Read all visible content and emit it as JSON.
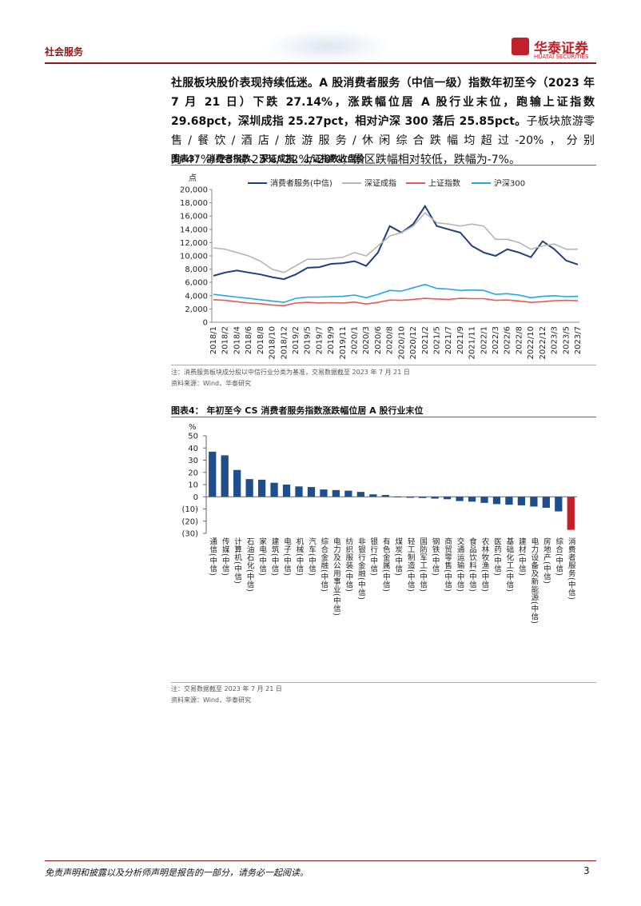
{
  "header": {
    "section": "社会服务",
    "logo": "华泰证券",
    "logo_en": "HUATAI SECURITIES"
  },
  "paragraph": {
    "bold": "社服板块股价表现持续低迷。A 股消费者服务（中信一级）指数年初至今（2023 年 7 月 21 日）下跌 27.14%，涨跌幅位居 A 股行业末位，跑输上证指数 29.68pct，深圳成指 25.27pct，相对沪深 300 落后 25.85pct。",
    "text": "子板块旅游零售/餐饮/酒店/旅游服务/休闲综合跌幅均超过-20%，分别为-47%/-23%/-23%/-22%/-20%，景区跌幅相对较低，跌幅为-7%。"
  },
  "figure3": {
    "title": "图表3：  消费者指数、深证成指、上证指数收盘价",
    "note": "注：消费服务板块成分股以中信行业分类为基准，交易数据截至 2023 年 7 月 21 日",
    "source": "资料来源：Wind，华泰研究"
  },
  "figure4": {
    "title": "图表4：  年初至今 CS 消费者服务指数涨跌幅位居 A 股行业末位",
    "note": "注：交易数据截至 2023 年 7 月 21 日",
    "source": "资料来源：Wind，华泰研究"
  },
  "footer": {
    "disclaimer": "免责声明和披露以及分析师声明是报告的一部分，请务必一起阅读。",
    "page": "3"
  },
  "chart_data": [
    {
      "type": "line",
      "y_label": "点",
      "categories": [
        "2018/1",
        "2018/2",
        "2018/4",
        "2018/6",
        "2018/8",
        "2018/10",
        "2018/12",
        "2019/2",
        "2019/5",
        "2019/7",
        "2019/9",
        "2019/11",
        "2020/1",
        "2020/3",
        "2020/6",
        "2020/8",
        "2020/10",
        "2020/12",
        "2021/2",
        "2021/5",
        "2021/7",
        "2021/9",
        "2021/11",
        "2022/1",
        "2022/3",
        "2022/6",
        "2022/8",
        "2022/10",
        "2022/12",
        "2023/3",
        "2023/5",
        "2023/7"
      ],
      "series": [
        {
          "name": "消费者服务(中信)",
          "color": "#1f3f7a",
          "values": [
            7000,
            7500,
            7800,
            7500,
            7200,
            6800,
            6500,
            7200,
            8200,
            8300,
            8800,
            8900,
            9200,
            8500,
            10500,
            14500,
            13500,
            14800,
            17500,
            14500,
            14000,
            13500,
            11500,
            10500,
            10000,
            11000,
            10500,
            9800,
            12200,
            11000,
            9300,
            8700
          ]
        },
        {
          "name": "深证成指",
          "color": "#b5b5b5",
          "values": [
            11200,
            11000,
            10500,
            10000,
            9200,
            8000,
            7500,
            8500,
            9500,
            9500,
            9600,
            9800,
            10500,
            10000,
            11500,
            13000,
            13500,
            14500,
            16500,
            15000,
            14800,
            14500,
            14800,
            14500,
            12500,
            12500,
            12000,
            11000,
            11500,
            11800,
            11000,
            11000
          ]
        },
        {
          "name": "上证指数",
          "color": "#e8585a",
          "values": [
            3400,
            3300,
            3100,
            2900,
            2800,
            2600,
            2500,
            2900,
            3000,
            2900,
            2950,
            2900,
            3050,
            2750,
            3000,
            3350,
            3300,
            3450,
            3600,
            3500,
            3450,
            3600,
            3550,
            3550,
            3300,
            3350,
            3200,
            3000,
            3100,
            3250,
            3300,
            3250
          ]
        },
        {
          "name": "沪深300",
          "color": "#21a6e8",
          "values": [
            4200,
            4000,
            3800,
            3600,
            3400,
            3200,
            3000,
            3600,
            3800,
            3800,
            3850,
            3900,
            4100,
            3700,
            4200,
            4800,
            4700,
            5200,
            5700,
            5100,
            5000,
            4800,
            4850,
            4800,
            4200,
            4300,
            4100,
            3700,
            3900,
            4000,
            3850,
            3900
          ]
        }
      ],
      "ylim": [
        0,
        20000
      ],
      "yticks": [
        0,
        {
          "value": 2000,
          "label": "2,000"
        },
        {
          "value": 4000,
          "label": "4,000"
        },
        {
          "value": 6000,
          "label": "6,000"
        },
        {
          "value": 8000,
          "label": "8,000"
        },
        {
          "value": 10000,
          "label": "10,000"
        },
        {
          "value": 12000,
          "label": "12,000"
        },
        {
          "value": 14000,
          "label": "14,000"
        },
        {
          "value": 16000,
          "label": "16,000"
        },
        {
          "value": 18000,
          "label": "18,000"
        },
        {
          "value": 20000,
          "label": "20,000"
        }
      ]
    },
    {
      "type": "bar",
      "y_label": "%",
      "categories": [
        "通信(中信)",
        "传媒(中信)",
        "计算机(中信)",
        "石油石化(中信)",
        "家电(中信)",
        "建筑(中信)",
        "电子(中信)",
        "机械(中信)",
        "汽车(中信)",
        "综合金融(中信)",
        "电力及公用事业(中信)",
        "纺织服装(中信)",
        "非银行金融(中信)",
        "银行(中信)",
        "有色金属(中信)",
        "煤炭(中信)",
        "轻工制造(中信)",
        "国防军工(中信)",
        "钢铁(中信)",
        "商贸零售(中信)",
        "交通运输(中信)",
        "食品饮料(中信)",
        "农林牧渔(中信)",
        "医药(中信)",
        "基础化工(中信)",
        "建材(中信)",
        "电力设备及新能源(中信)",
        "房地产(中信)",
        "综合(中信)",
        "消费者服务(中信)"
      ],
      "values": [
        37,
        34,
        22,
        14.5,
        14,
        11.5,
        10,
        8.5,
        8,
        6,
        5.5,
        5,
        4,
        2,
        1.5,
        -0.5,
        -0.8,
        -1,
        -1.5,
        -2,
        -3.5,
        -4,
        -5,
        -6,
        -6.5,
        -7,
        -8,
        -9,
        -12,
        -27.14
      ],
      "colors": [
        "#1f4e8c",
        "#1f4e8c",
        "#1f4e8c",
        "#1f4e8c",
        "#1f4e8c",
        "#1f4e8c",
        "#1f4e8c",
        "#1f4e8c",
        "#1f4e8c",
        "#1f4e8c",
        "#1f4e8c",
        "#1f4e8c",
        "#1f4e8c",
        "#1f4e8c",
        "#1f4e8c",
        "#1f4e8c",
        "#1f4e8c",
        "#1f4e8c",
        "#1f4e8c",
        "#1f4e8c",
        "#1f4e8c",
        "#1f4e8c",
        "#1f4e8c",
        "#1f4e8c",
        "#1f4e8c",
        "#1f4e8c",
        "#1f4e8c",
        "#1f4e8c",
        "#1f4e8c",
        "#c0212a"
      ],
      "ylim": [
        -30,
        50
      ],
      "yticks": [
        {
          "value": -30,
          "label": "(30)"
        },
        {
          "value": -20,
          "label": "(20)"
        },
        {
          "value": -10,
          "label": "(10)"
        },
        0,
        10,
        20,
        30,
        40,
        50
      ]
    }
  ]
}
